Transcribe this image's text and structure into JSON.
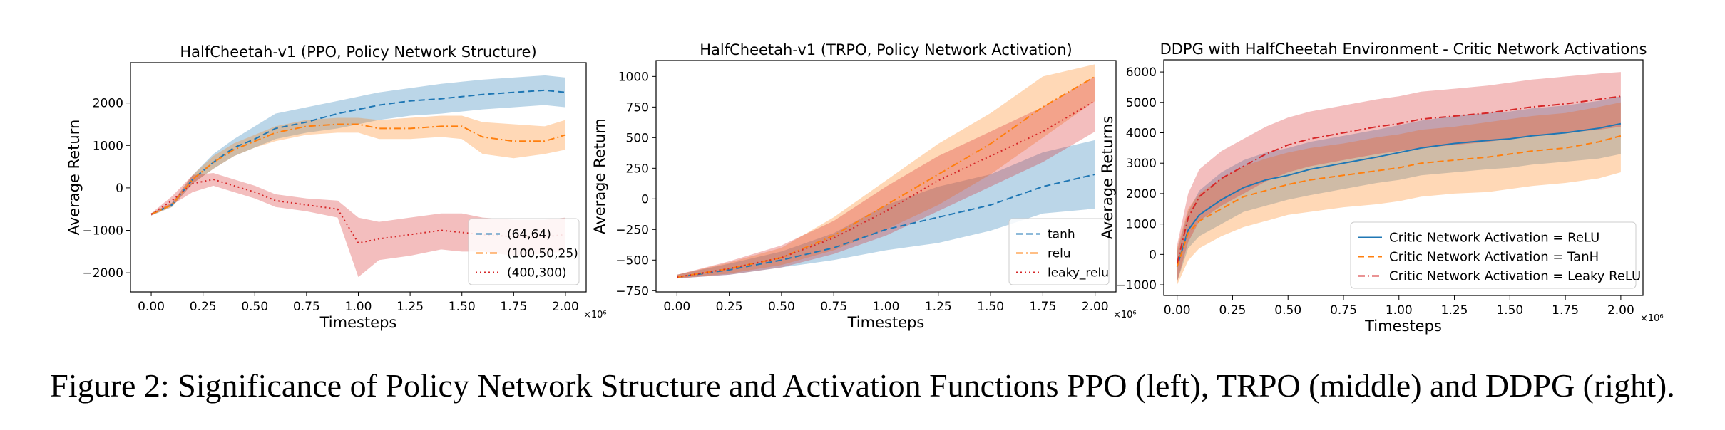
{
  "caption": "Figure 2: Significance of Policy Network Structure and Activation Functions PPO (left), TRPO (middle) and DDPG (right).",
  "chart_data": [
    {
      "type": "line",
      "title": "HalfCheetah-v1 (PPO, Policy Network Structure)",
      "xlabel": "Timesteps",
      "ylabel": "Average Return",
      "x_multiplier": "×10⁶",
      "xlim": [
        -0.1,
        2.1
      ],
      "ylim": [
        -2450,
        2950
      ],
      "xticks": [
        0,
        0.25,
        0.5,
        0.75,
        1.0,
        1.25,
        1.5,
        1.75,
        2.0
      ],
      "xtick_labels": [
        "0.00",
        "0.25",
        "0.50",
        "0.75",
        "1.00",
        "1.25",
        "1.50",
        "1.75",
        "2.00"
      ],
      "yticks": [
        -2000,
        -1000,
        0,
        1000,
        2000
      ],
      "ytick_labels": [
        "−2000",
        "−1000",
        "0",
        "1000",
        "2000"
      ],
      "grid": false,
      "legend_position": "lower-right",
      "series": [
        {
          "name": "(64,64)",
          "color": "#1f77b4",
          "dash": "dashed",
          "x": [
            0,
            0.1,
            0.2,
            0.3,
            0.4,
            0.5,
            0.6,
            0.75,
            0.9,
            1.0,
            1.1,
            1.25,
            1.4,
            1.5,
            1.6,
            1.75,
            1.9,
            2.0
          ],
          "y": [
            -620,
            -400,
            200,
            600,
            950,
            1150,
            1400,
            1550,
            1750,
            1850,
            1950,
            2050,
            2100,
            2150,
            2200,
            2250,
            2300,
            2250
          ],
          "lower": [
            -650,
            -450,
            100,
            450,
            750,
            950,
            1150,
            1300,
            1400,
            1500,
            1600,
            1700,
            1750,
            1800,
            1850,
            1900,
            1950,
            1900
          ],
          "upper": [
            -600,
            -350,
            300,
            800,
            1150,
            1450,
            1750,
            1900,
            2050,
            2150,
            2250,
            2350,
            2450,
            2500,
            2550,
            2600,
            2650,
            2600
          ]
        },
        {
          "name": "(100,50,25)",
          "color": "#ff7f0e",
          "dash": "dashdot",
          "x": [
            0,
            0.1,
            0.2,
            0.3,
            0.4,
            0.5,
            0.6,
            0.75,
            0.9,
            1.0,
            1.1,
            1.25,
            1.4,
            1.5,
            1.6,
            1.75,
            1.9,
            2.0
          ],
          "y": [
            -620,
            -400,
            200,
            600,
            900,
            1100,
            1300,
            1450,
            1500,
            1500,
            1400,
            1400,
            1450,
            1450,
            1200,
            1100,
            1100,
            1250
          ],
          "lower": [
            -650,
            -450,
            100,
            450,
            750,
            950,
            1100,
            1250,
            1300,
            1300,
            1150,
            1150,
            1200,
            1150,
            800,
            700,
            800,
            900
          ],
          "upper": [
            -600,
            -350,
            300,
            750,
            1050,
            1250,
            1450,
            1600,
            1650,
            1650,
            1600,
            1650,
            1700,
            1700,
            1550,
            1500,
            1450,
            1600
          ]
        },
        {
          "name": "(400,300)",
          "color": "#d62728",
          "dash": "dotted",
          "x": [
            0,
            0.1,
            0.2,
            0.3,
            0.4,
            0.5,
            0.6,
            0.75,
            0.9,
            1.0,
            1.1,
            1.25,
            1.4,
            1.5,
            1.6,
            1.75,
            1.9,
            2.0
          ],
          "y": [
            -620,
            -300,
            100,
            200,
            50,
            -100,
            -300,
            -400,
            -500,
            -1300,
            -1200,
            -1100,
            -1000,
            -1050,
            -1100,
            -1150,
            -1150,
            -1100
          ],
          "lower": [
            -650,
            -400,
            -100,
            50,
            -100,
            -250,
            -450,
            -550,
            -700,
            -2100,
            -1700,
            -1600,
            -1450,
            -1500,
            -1500,
            -1600,
            -1550,
            -1500
          ],
          "upper": [
            -600,
            -200,
            300,
            350,
            200,
            50,
            -150,
            -250,
            -300,
            -700,
            -800,
            -700,
            -600,
            -600,
            -700,
            -750,
            -750,
            -700
          ]
        }
      ]
    },
    {
      "type": "line",
      "title": "HalfCheetah-v1 (TRPO, Policy Network Activation)",
      "xlabel": "Timesteps",
      "ylabel": "Average Return",
      "x_multiplier": "×10⁶",
      "xlim": [
        -0.1,
        2.1
      ],
      "ylim": [
        -760,
        1130
      ],
      "xticks": [
        0,
        0.25,
        0.5,
        0.75,
        1.0,
        1.25,
        1.5,
        1.75,
        2.0
      ],
      "xtick_labels": [
        "0.00",
        "0.25",
        "0.50",
        "0.75",
        "1.00",
        "1.25",
        "1.50",
        "1.75",
        "2.00"
      ],
      "yticks": [
        -750,
        -500,
        -250,
        0,
        250,
        500,
        750,
        1000
      ],
      "ytick_labels": [
        "−750",
        "−500",
        "−250",
        "0",
        "250",
        "500",
        "750",
        "1000"
      ],
      "grid": false,
      "legend_position": "lower-right",
      "series": [
        {
          "name": "tanh",
          "color": "#1f77b4",
          "dash": "dashed",
          "x": [
            0,
            0.25,
            0.5,
            0.75,
            1.0,
            1.25,
            1.5,
            1.75,
            2.0
          ],
          "y": [
            -640,
            -580,
            -500,
            -400,
            -250,
            -150,
            -50,
            100,
            200
          ],
          "lower": [
            -650,
            -620,
            -560,
            -500,
            -420,
            -360,
            -260,
            -120,
            -80
          ],
          "upper": [
            -620,
            -530,
            -430,
            -280,
            -50,
            100,
            200,
            380,
            480
          ]
        },
        {
          "name": "relu",
          "color": "#ff7f0e",
          "dash": "dashdot",
          "x": [
            0,
            0.25,
            0.5,
            0.75,
            1.0,
            1.25,
            1.5,
            1.75,
            2.0
          ],
          "y": [
            -640,
            -570,
            -480,
            -300,
            -50,
            200,
            450,
            750,
            1000
          ],
          "lower": [
            -650,
            -610,
            -540,
            -420,
            -250,
            -50,
            200,
            500,
            800
          ],
          "upper": [
            -620,
            -520,
            -400,
            -150,
            150,
            450,
            700,
            1000,
            1100
          ]
        },
        {
          "name": "leaky_relu",
          "color": "#d62728",
          "dash": "dotted",
          "x": [
            0,
            0.25,
            0.5,
            0.75,
            1.0,
            1.25,
            1.5,
            1.75,
            2.0
          ],
          "y": [
            -640,
            -570,
            -480,
            -320,
            -100,
            150,
            350,
            550,
            800
          ],
          "lower": [
            -650,
            -620,
            -560,
            -450,
            -300,
            -100,
            100,
            300,
            550
          ],
          "upper": [
            -620,
            -510,
            -380,
            -180,
            100,
            350,
            550,
            750,
            1000
          ]
        }
      ]
    },
    {
      "type": "line",
      "title": "DDPG with HalfCheetah Environment - Critic Network Activations",
      "xlabel": "Timesteps",
      "ylabel": "Average Returns",
      "x_multiplier": "×10⁶",
      "xlim": [
        -0.06,
        2.1
      ],
      "ylim": [
        -1350,
        6400
      ],
      "xticks": [
        0,
        0.25,
        0.5,
        0.75,
        1.0,
        1.25,
        1.5,
        1.75,
        2.0
      ],
      "xtick_labels": [
        "0.00",
        "0.25",
        "0.50",
        "0.75",
        "1.00",
        "1.25",
        "1.50",
        "1.75",
        "2.00"
      ],
      "yticks": [
        -1000,
        0,
        1000,
        2000,
        3000,
        4000,
        5000,
        6000
      ],
      "ytick_labels": [
        "−1000",
        "0",
        "1000",
        "2000",
        "3000",
        "4000",
        "5000",
        "6000"
      ],
      "grid": false,
      "legend_position": "lower-right",
      "series": [
        {
          "name": "Critic Network Activation = ReLU",
          "color": "#1f77b4",
          "dash": "solid",
          "x": [
            0,
            0.05,
            0.1,
            0.2,
            0.3,
            0.4,
            0.5,
            0.6,
            0.75,
            0.9,
            1.0,
            1.1,
            1.25,
            1.4,
            1.5,
            1.6,
            1.75,
            1.9,
            2.0
          ],
          "y": [
            -400,
            800,
            1300,
            1800,
            2200,
            2450,
            2600,
            2800,
            3000,
            3200,
            3350,
            3500,
            3650,
            3750,
            3800,
            3900,
            4000,
            4150,
            4300
          ],
          "lower": [
            -900,
            200,
            600,
            1000,
            1400,
            1600,
            1800,
            1950,
            2150,
            2350,
            2450,
            2600,
            2700,
            2800,
            2850,
            2950,
            3050,
            3150,
            3300
          ],
          "upper": [
            100,
            1400,
            2100,
            2700,
            3100,
            3350,
            3500,
            3700,
            3900,
            4100,
            4250,
            4400,
            4550,
            4650,
            4700,
            4800,
            4900,
            5050,
            5200
          ]
        },
        {
          "name": "Critic Network Activation = TanH",
          "color": "#ff7f0e",
          "dash": "dashed",
          "x": [
            0,
            0.05,
            0.1,
            0.2,
            0.3,
            0.4,
            0.5,
            0.6,
            0.75,
            0.9,
            1.0,
            1.1,
            1.25,
            1.4,
            1.5,
            1.6,
            1.75,
            1.9,
            2.0
          ],
          "y": [
            -400,
            700,
            1100,
            1500,
            1900,
            2100,
            2300,
            2450,
            2600,
            2750,
            2850,
            3000,
            3100,
            3200,
            3300,
            3400,
            3500,
            3700,
            3900
          ],
          "lower": [
            -1000,
            -200,
            200,
            600,
            900,
            1100,
            1300,
            1400,
            1550,
            1650,
            1750,
            1900,
            2000,
            2050,
            2150,
            2250,
            2350,
            2500,
            2700
          ],
          "upper": [
            200,
            1500,
            2000,
            2500,
            2900,
            3150,
            3350,
            3500,
            3650,
            3850,
            3950,
            4100,
            4200,
            4350,
            4450,
            4550,
            4650,
            4850,
            5000
          ]
        },
        {
          "name": "Critic Network Activation = Leaky ReLU",
          "color": "#d62728",
          "dash": "dashdot",
          "x": [
            0,
            0.05,
            0.1,
            0.2,
            0.3,
            0.4,
            0.5,
            0.6,
            0.75,
            0.9,
            1.0,
            1.1,
            1.25,
            1.4,
            1.5,
            1.6,
            1.75,
            1.9,
            2.0
          ],
          "y": [
            -300,
            1200,
            1900,
            2500,
            2900,
            3300,
            3600,
            3800,
            4000,
            4200,
            4300,
            4450,
            4550,
            4650,
            4750,
            4850,
            4950,
            5100,
            5200
          ],
          "lower": [
            -900,
            400,
            1100,
            1600,
            2000,
            2400,
            2700,
            2900,
            3100,
            3300,
            3400,
            3500,
            3600,
            3700,
            3800,
            3900,
            4000,
            4100,
            4200
          ],
          "upper": [
            300,
            2000,
            2800,
            3400,
            3800,
            4200,
            4500,
            4700,
            4900,
            5100,
            5200,
            5350,
            5450,
            5550,
            5650,
            5750,
            5850,
            5950,
            6000
          ]
        }
      ]
    }
  ]
}
